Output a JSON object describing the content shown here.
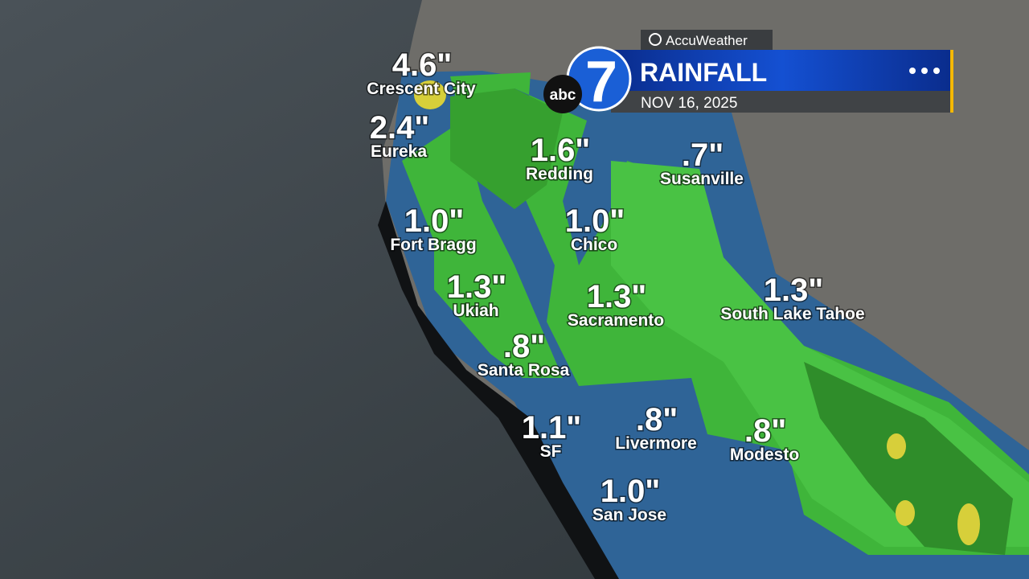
{
  "header": {
    "brand": "AccuWeather",
    "network": "abc",
    "channel": "7",
    "title": "RAINFALL",
    "date": "NOV 16, 2025"
  },
  "cities": [
    {
      "amount": "4.6\"",
      "name": "Crescent City"
    },
    {
      "amount": "2.4\"",
      "name": "Eureka"
    },
    {
      "amount": "1.6\"",
      "name": "Redding"
    },
    {
      "amount": ".7\"",
      "name": "Susanville"
    },
    {
      "amount": "1.0\"",
      "name": "Fort Bragg"
    },
    {
      "amount": "1.0\"",
      "name": "Chico"
    },
    {
      "amount": "1.3\"",
      "name": "Ukiah"
    },
    {
      "amount": "1.3\"",
      "name": "Sacramento"
    },
    {
      "amount": "1.3\"",
      "name": "South Lake Tahoe"
    },
    {
      "amount": ".8\"",
      "name": "Santa Rosa"
    },
    {
      "amount": "1.1\"",
      "name": "SF"
    },
    {
      "amount": ".8\"",
      "name": "Livermore"
    },
    {
      "amount": ".8\"",
      "name": "Modesto"
    },
    {
      "amount": "1.0\"",
      "name": "San Jose"
    }
  ]
}
